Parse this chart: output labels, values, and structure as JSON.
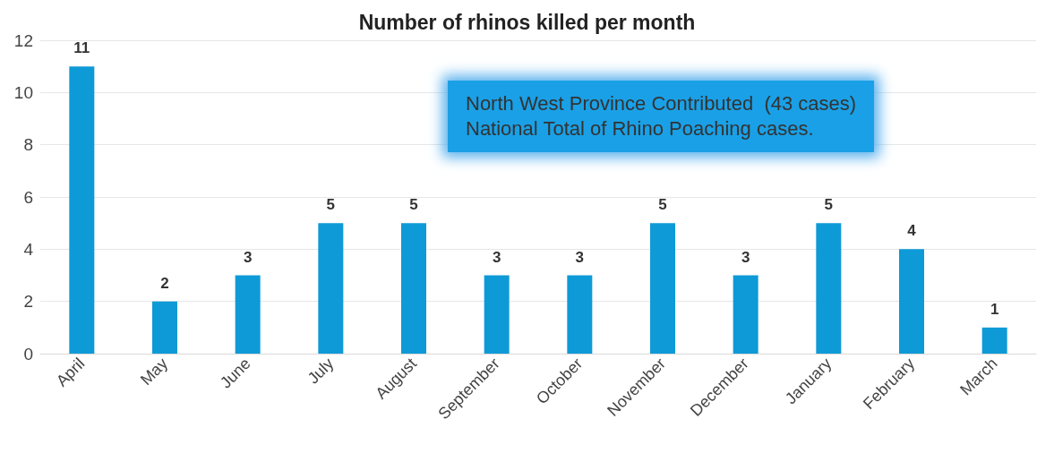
{
  "chart_data": {
    "type": "bar",
    "title": "Number of rhinos killed per month",
    "categories": [
      "April",
      "May",
      "June",
      "July",
      "August",
      "September",
      "October",
      "November",
      "December",
      "January",
      "February",
      "March"
    ],
    "values": [
      11,
      2,
      3,
      5,
      5,
      3,
      3,
      5,
      3,
      5,
      4,
      1
    ],
    "color": "#0e9ad7",
    "ylim": [
      0,
      12
    ],
    "yticks": [
      0,
      2,
      4,
      6,
      8,
      10,
      12
    ],
    "grid": "y",
    "data_labels": true,
    "annotations": [
      "North West Province Contributed  (43 cases)\nNational Total of Rhino Poaching cases."
    ]
  }
}
